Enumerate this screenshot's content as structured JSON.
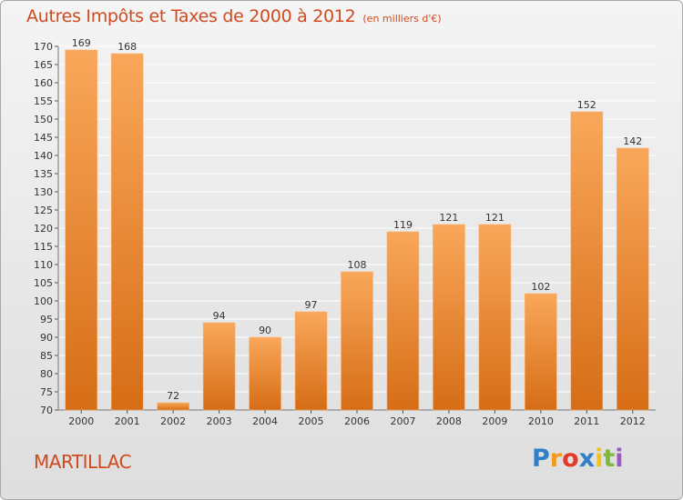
{
  "title": "Autres Impôts et Taxes de 2000 à 2012",
  "subtitle": "(en milliers d'€)",
  "commune": "MARTILLAC",
  "brand": {
    "letters": [
      "P",
      "r",
      "o",
      "x",
      "i",
      "t",
      "i"
    ],
    "colors": [
      "#2f7fc9",
      "#f29a1a",
      "#e53a2a",
      "#2f7fc9",
      "#f2c21a",
      "#7fb93a",
      "#9a5bc4"
    ]
  },
  "colors": {
    "title": "#d04a1f",
    "bar_top": "#f9a75a",
    "bar_bottom": "#d66d16",
    "grid": "#ffffff"
  },
  "chart_data": {
    "type": "bar",
    "categories": [
      "2000",
      "2001",
      "2002",
      "2003",
      "2004",
      "2005",
      "2006",
      "2007",
      "2008",
      "2009",
      "2010",
      "2011",
      "2012"
    ],
    "values": [
      169,
      168,
      72,
      94,
      90,
      97,
      108,
      119,
      121,
      121,
      102,
      152,
      142
    ],
    "ylim": [
      70,
      170
    ],
    "yticks": [
      70,
      75,
      80,
      85,
      90,
      95,
      100,
      105,
      110,
      115,
      120,
      125,
      130,
      135,
      140,
      145,
      150,
      155,
      160,
      165,
      170
    ],
    "grid": true,
    "data_labels": true
  }
}
